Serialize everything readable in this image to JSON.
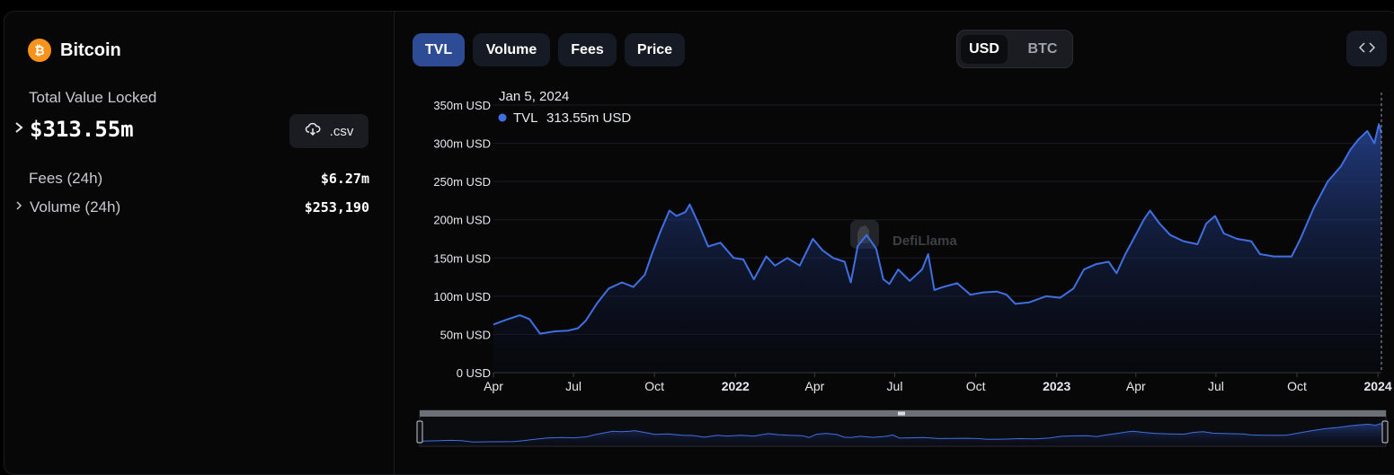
{
  "protocol": {
    "name": "Bitcoin",
    "logo_icon": "bitcoin-icon",
    "logo_color": "#f7931a"
  },
  "summary": {
    "tvl_label": "Total Value Locked",
    "tvl_value": "$313.55m",
    "csv_label": ".csv",
    "fees_label": "Fees (24h)",
    "fees_value": "$6.27m",
    "volume_label": "Volume (24h)",
    "volume_value": "$253,190"
  },
  "tabs": [
    {
      "label": "TVL",
      "active": true
    },
    {
      "label": "Volume",
      "active": false
    },
    {
      "label": "Fees",
      "active": false
    },
    {
      "label": "Price",
      "active": false
    }
  ],
  "currency": {
    "selected": "USD",
    "other": "BTC"
  },
  "watermark": "DefiLlama",
  "tooltip": {
    "date": "Jan 5, 2024",
    "series": "TVL",
    "value": "313.55m USD"
  },
  "chart_data": {
    "type": "area",
    "series": [
      {
        "name": "TVL",
        "color": "#3f6fe0"
      }
    ],
    "ylim": [
      0,
      350
    ],
    "yticks": [
      {
        "value": 0,
        "label": "0 USD"
      },
      {
        "value": 50,
        "label": "50m USD"
      },
      {
        "value": 100,
        "label": "100m USD"
      },
      {
        "value": 150,
        "label": "150m USD"
      },
      {
        "value": 200,
        "label": "200m USD"
      },
      {
        "value": 250,
        "label": "250m USD"
      },
      {
        "value": 300,
        "label": "300m USD"
      },
      {
        "value": 350,
        "label": "350m USD"
      }
    ],
    "xlim": [
      "2021-04-01",
      "2024-01-05"
    ],
    "xticks": [
      {
        "date": "2021-04-01",
        "label": "Apr",
        "bold": false
      },
      {
        "date": "2021-07-01",
        "label": "Jul",
        "bold": false
      },
      {
        "date": "2021-10-01",
        "label": "Oct",
        "bold": false
      },
      {
        "date": "2022-01-01",
        "label": "2022",
        "bold": true
      },
      {
        "date": "2022-04-01",
        "label": "Apr",
        "bold": false
      },
      {
        "date": "2022-07-01",
        "label": "Jul",
        "bold": false
      },
      {
        "date": "2022-10-01",
        "label": "Oct",
        "bold": false
      },
      {
        "date": "2023-01-01",
        "label": "2023",
        "bold": true
      },
      {
        "date": "2023-04-01",
        "label": "Apr",
        "bold": false
      },
      {
        "date": "2023-07-01",
        "label": "Jul",
        "bold": false
      },
      {
        "date": "2023-10-01",
        "label": "Oct",
        "bold": false
      },
      {
        "date": "2024-01-01",
        "label": "2024",
        "bold": true
      }
    ],
    "points": [
      [
        "2021-04-01",
        63
      ],
      [
        "2021-04-15",
        69
      ],
      [
        "2021-05-01",
        75
      ],
      [
        "2021-05-12",
        70
      ],
      [
        "2021-05-24",
        51
      ],
      [
        "2021-06-10",
        54
      ],
      [
        "2021-06-25",
        55
      ],
      [
        "2021-07-06",
        58
      ],
      [
        "2021-07-15",
        68
      ],
      [
        "2021-07-28",
        91
      ],
      [
        "2021-08-10",
        110
      ],
      [
        "2021-08-25",
        118
      ],
      [
        "2021-09-07",
        112
      ],
      [
        "2021-09-20",
        128
      ],
      [
        "2021-09-28",
        155
      ],
      [
        "2021-10-08",
        185
      ],
      [
        "2021-10-18",
        212
      ],
      [
        "2021-10-26",
        205
      ],
      [
        "2021-11-05",
        210
      ],
      [
        "2021-11-10",
        220
      ],
      [
        "2021-11-20",
        195
      ],
      [
        "2021-12-01",
        165
      ],
      [
        "2021-12-15",
        170
      ],
      [
        "2021-12-30",
        150
      ],
      [
        "2022-01-10",
        148
      ],
      [
        "2022-01-22",
        122
      ],
      [
        "2022-02-05",
        152
      ],
      [
        "2022-02-15",
        140
      ],
      [
        "2022-03-01",
        150
      ],
      [
        "2022-03-15",
        140
      ],
      [
        "2022-03-30",
        175
      ],
      [
        "2022-04-10",
        160
      ],
      [
        "2022-04-22",
        150
      ],
      [
        "2022-05-05",
        145
      ],
      [
        "2022-05-12",
        118
      ],
      [
        "2022-05-20",
        166
      ],
      [
        "2022-05-30",
        180
      ],
      [
        "2022-06-10",
        162
      ],
      [
        "2022-06-18",
        122
      ],
      [
        "2022-06-25",
        116
      ],
      [
        "2022-07-05",
        135
      ],
      [
        "2022-07-18",
        120
      ],
      [
        "2022-08-01",
        135
      ],
      [
        "2022-08-08",
        155
      ],
      [
        "2022-08-15",
        108
      ],
      [
        "2022-08-25",
        112
      ],
      [
        "2022-09-10",
        117
      ],
      [
        "2022-09-25",
        102
      ],
      [
        "2022-10-10",
        105
      ],
      [
        "2022-10-25",
        106
      ],
      [
        "2022-11-05",
        102
      ],
      [
        "2022-11-15",
        90
      ],
      [
        "2022-12-01",
        92
      ],
      [
        "2022-12-20",
        100
      ],
      [
        "2023-01-05",
        98
      ],
      [
        "2023-01-20",
        110
      ],
      [
        "2023-02-01",
        135
      ],
      [
        "2023-02-15",
        142
      ],
      [
        "2023-03-01",
        145
      ],
      [
        "2023-03-10",
        130
      ],
      [
        "2023-03-20",
        155
      ],
      [
        "2023-03-28",
        172
      ],
      [
        "2023-04-10",
        200
      ],
      [
        "2023-04-17",
        212
      ],
      [
        "2023-04-28",
        195
      ],
      [
        "2023-05-10",
        180
      ],
      [
        "2023-05-25",
        172
      ],
      [
        "2023-06-10",
        168
      ],
      [
        "2023-06-20",
        195
      ],
      [
        "2023-06-30",
        205
      ],
      [
        "2023-07-10",
        182
      ],
      [
        "2023-07-25",
        175
      ],
      [
        "2023-08-10",
        172
      ],
      [
        "2023-08-20",
        155
      ],
      [
        "2023-09-05",
        152
      ],
      [
        "2023-09-25",
        152
      ],
      [
        "2023-10-05",
        175
      ],
      [
        "2023-10-20",
        215
      ],
      [
        "2023-11-05",
        250
      ],
      [
        "2023-11-20",
        270
      ],
      [
        "2023-12-01",
        292
      ],
      [
        "2023-12-10",
        305
      ],
      [
        "2023-12-20",
        316
      ],
      [
        "2023-12-28",
        300
      ],
      [
        "2024-01-02",
        325
      ],
      [
        "2024-01-05",
        313.55
      ]
    ]
  }
}
